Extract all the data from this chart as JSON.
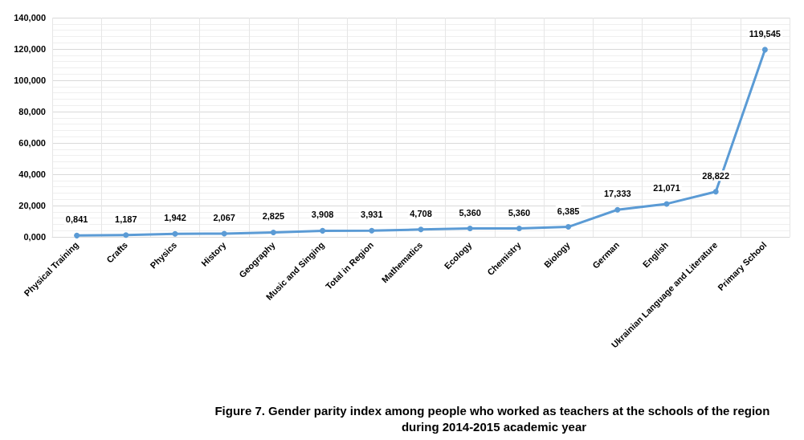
{
  "chart_data": {
    "type": "line",
    "title": "Figure 7. Gender parity index among people who worked as teachers at the schools of the region during 2014-2015 academic year",
    "categories": [
      "Physical Training",
      "Crafts",
      "Physics",
      "History",
      "Geography",
      "Music and Singing",
      "Total in Region",
      "Mathematics",
      "Ecology",
      "Chemistry",
      "Biology",
      "German",
      "English",
      "Ukrainian Language and Literature",
      "Primary School"
    ],
    "series": [
      {
        "color": "#5b9bd5",
        "values": [
          0.841,
          1.187,
          1.942,
          2.067,
          2.825,
          3.908,
          3.931,
          4.708,
          5.36,
          5.36,
          6.385,
          17.333,
          21.071,
          28.822,
          119.545
        ],
        "value_labels": [
          "0,841",
          "1,187",
          "1,942",
          "2,067",
          "2,825",
          "3,908",
          "3,931",
          "4,708",
          "5,360",
          "5,360",
          "6,385",
          "17,333",
          "21,071",
          "28,822",
          "119,545"
        ]
      }
    ],
    "ylim": [
      0,
      140
    ],
    "yticks": [
      {
        "value": 0,
        "label": "0,000"
      },
      {
        "value": 20,
        "label": "20,000"
      },
      {
        "value": 40,
        "label": "40,000"
      },
      {
        "value": 60,
        "label": "60,000"
      },
      {
        "value": 80,
        "label": "80,000"
      },
      {
        "value": 100,
        "label": "100,000"
      },
      {
        "value": 120,
        "label": "120,000"
      },
      {
        "value": 140,
        "label": "140,000"
      }
    ],
    "grid": true,
    "marker": "circle",
    "line_style": "solid"
  }
}
